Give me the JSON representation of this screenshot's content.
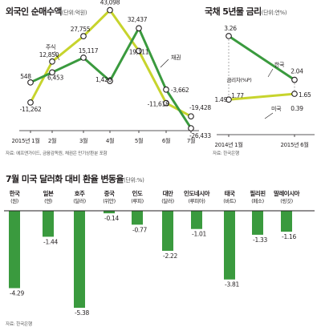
{
  "charts": {
    "flow": {
      "title": "외국인 순매수액",
      "unit": "(단위:억원)",
      "source": "자료: 에프앤가이드, 금융감독원, 채권은 만기상환분 포함",
      "type": "line",
      "x": [
        "2015년 1월",
        "2월",
        "3월",
        "4월",
        "5월",
        "6월",
        "7월"
      ],
      "series": [
        {
          "name": "주식",
          "color": "#c7d42d",
          "values": [
            -11262,
            12850,
            27755,
            43098,
            19111,
            -11618,
            -19428
          ]
        },
        {
          "name": "채권",
          "color": "#3a9a3e",
          "values": [
            548,
            6453,
            15117,
            1426,
            32437,
            -3662,
            -26433
          ]
        }
      ],
      "labels": {
        "stock": [
          "-11,262",
          "12,850",
          "27,755",
          "43,098",
          "19,111",
          "-11,618",
          "-19,428"
        ],
        "bond": [
          "548",
          "6,453",
          "15,117",
          "1,426",
          "32,437",
          "-3,662",
          "-26,433"
        ]
      }
    },
    "rate": {
      "title": "국채 5년물 금리",
      "unit": "(단위:연%)",
      "source": "자료: 한국은행",
      "type": "line",
      "x": [
        "2014년 1월",
        "2015년 6월"
      ],
      "series": [
        {
          "name": "한국",
          "color": "#3a9a3e",
          "values": [
            3.26,
            2.04
          ]
        },
        {
          "name": "미국",
          "color": "#c7d42d",
          "values": [
            1.49,
            1.65
          ]
        }
      ],
      "labels": {
        "korea": [
          "3.26",
          "2.04"
        ],
        "us": [
          "1.49",
          "1.65"
        ]
      },
      "gap_label": "금리차(%P)",
      "gap_values": [
        "1.77",
        "0.39"
      ]
    },
    "fx": {
      "title": "7월 미국 달러화 대비 환율 변동율",
      "unit": "(단위:%)",
      "source": "자료: 한국은행",
      "type": "bar",
      "color": "#3a9a3e",
      "categories": [
        "한국",
        "일본",
        "호주",
        "중국",
        "인도",
        "대만",
        "인도네시아",
        "태국",
        "필리핀",
        "말레이시아"
      ],
      "currencies": [
        "(원)",
        "(엔)",
        "(달러)",
        "(위안)",
        "(루피)",
        "(달러)",
        "(루피아)",
        "(바트)",
        "(페소)",
        "(링깃)"
      ],
      "values": [
        -4.29,
        -1.44,
        -5.38,
        -0.14,
        -0.77,
        -2.22,
        -1.01,
        -3.81,
        -1.33,
        -1.16
      ],
      "value_labels": [
        "-4.29",
        "-1.44",
        "-5.38",
        "-0.14",
        "-0.77",
        "-2.22",
        "-1.01",
        "-3.81",
        "-1.33",
        "-1.16"
      ]
    }
  }
}
